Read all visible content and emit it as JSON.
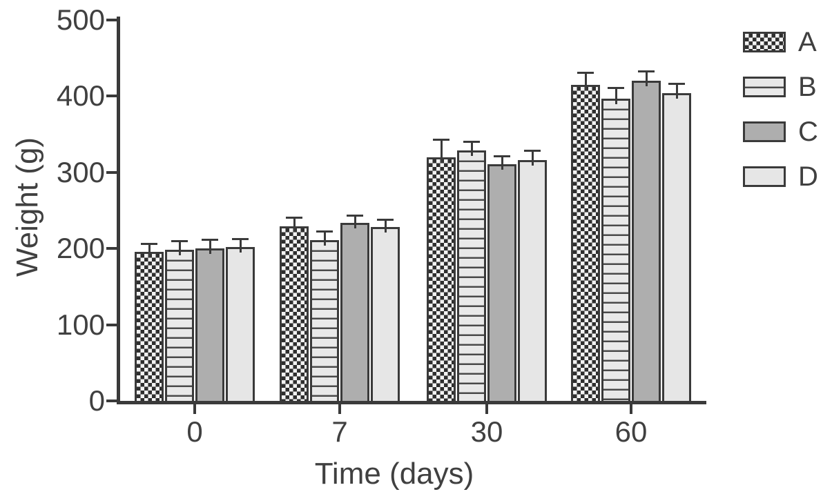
{
  "chart_data": {
    "type": "bar",
    "title": "",
    "xlabel": "Time (days)",
    "ylabel": "Weight (g)",
    "categories": [
      "0",
      "7",
      "30",
      "60"
    ],
    "series": [
      {
        "name": "A",
        "pattern": "checker",
        "values": [
          196,
          229,
          320,
          415
        ],
        "errors": [
          10,
          11,
          22,
          15
        ]
      },
      {
        "name": "B",
        "pattern": "hlines",
        "values": [
          198,
          211,
          329,
          397
        ],
        "errors": [
          11,
          11,
          11,
          13
        ]
      },
      {
        "name": "C",
        "pattern": "solid-dark",
        "values": [
          200,
          234,
          311,
          420
        ],
        "errors": [
          11,
          9,
          10,
          12
        ]
      },
      {
        "name": "D",
        "pattern": "solid-light",
        "values": [
          202,
          228,
          316,
          404
        ],
        "errors": [
          10,
          9,
          12,
          12
        ]
      }
    ],
    "error_bars": "upper-only",
    "y_ticks": [
      0,
      100,
      200,
      300,
      400,
      500
    ],
    "ylim": [
      0,
      500
    ],
    "grid": false,
    "legend_position": "right",
    "colors": {
      "background": "#ffffff",
      "axis": "#3a3a3a",
      "text": "#404040",
      "bar_border": "#3a3a3a",
      "checker_dark": "#2e2e2e",
      "checker_light": "#f2f2f2",
      "hlines_fill": "#e9e9e9",
      "hlines_line": "#4a4a4a",
      "solid_dark": "#aeaeae",
      "solid_light": "#e6e6e6"
    }
  }
}
